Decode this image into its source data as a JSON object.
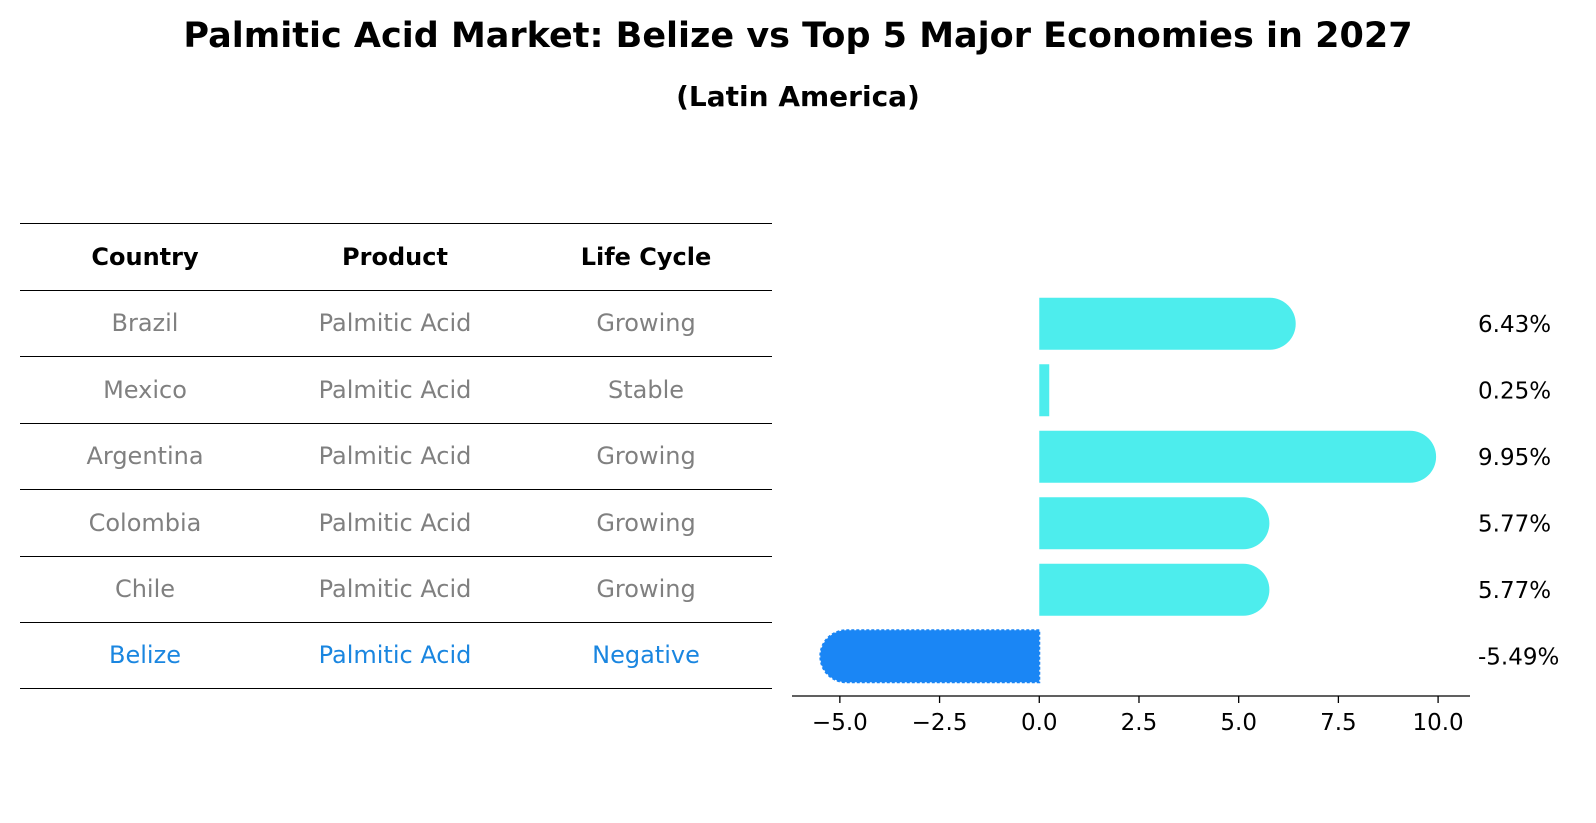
{
  "title": "Palmitic Acid Market: Belize vs Top 5 Major Economies in 2027",
  "subtitle": "(Latin America)",
  "table": {
    "headers": [
      "Country",
      "Product",
      "Life Cycle"
    ],
    "rows": [
      [
        "Brazil",
        "Palmitic Acid",
        "Growing"
      ],
      [
        "Mexico",
        "Palmitic Acid",
        "Stable"
      ],
      [
        "Argentina",
        "Palmitic Acid",
        "Growing"
      ],
      [
        "Colombia",
        "Palmitic Acid",
        "Growing"
      ],
      [
        "Chile",
        "Palmitic Acid",
        "Growing"
      ],
      [
        "Belize",
        "Palmitic Acid",
        "Negative"
      ]
    ]
  },
  "colors": {
    "bar": "#4deded",
    "highlight": "#1a86f5",
    "highlight_text": "#1a86e0",
    "muted_text": "#808080"
  },
  "chart_data": {
    "type": "bar",
    "orientation": "horizontal",
    "categories": [
      "Brazil",
      "Mexico",
      "Argentina",
      "Colombia",
      "Chile",
      "Belize"
    ],
    "values": [
      6.43,
      0.25,
      9.95,
      5.77,
      5.77,
      -5.49
    ],
    "labels": [
      "6.43%",
      "0.25%",
      "9.95%",
      "5.77%",
      "5.77%",
      "-5.49%"
    ],
    "highlight": "Belize",
    "xlim": [
      -6.2,
      10.8
    ],
    "xticks": [
      -5.0,
      -2.5,
      0.0,
      2.5,
      5.0,
      7.5,
      10.0
    ],
    "xtick_labels": [
      "−5.0",
      "−2.5",
      "0.0",
      "2.5",
      "5.0",
      "7.5",
      "10.0"
    ],
    "grid": false
  }
}
